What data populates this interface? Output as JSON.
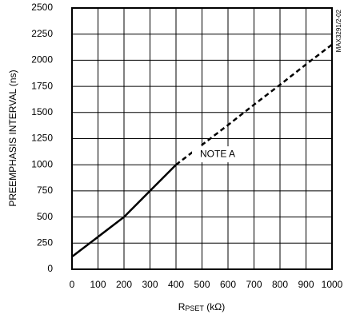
{
  "chart_data": {
    "type": "line",
    "ylabel": "PREEMPHASIS INTERVAL (ns)",
    "xlabel": {
      "main": "R",
      "sub": "PSET",
      "unit": " (kΩ)"
    },
    "side_note": "MAX3291/2-02",
    "annotation": {
      "text": "NOTE A",
      "x": 560,
      "y": 1100
    },
    "series": [
      {
        "x": [
          0,
          100,
          200,
          300,
          400
        ],
        "values": [
          120,
          310,
          500,
          750,
          1000
        ],
        "color": "#000000",
        "dashed": false
      },
      {
        "x": [
          400,
          500,
          600,
          700,
          800,
          900,
          1000
        ],
        "values": [
          1000,
          1190,
          1380,
          1575,
          1765,
          1960,
          2150
        ],
        "color": "#000000",
        "dashed": true
      }
    ],
    "xlim": [
      0,
      1000
    ],
    "xticks": [
      0,
      100,
      200,
      300,
      400,
      500,
      600,
      700,
      800,
      900,
      1000
    ],
    "ylim": [
      0,
      2500
    ],
    "yticks": [
      0,
      250,
      500,
      750,
      1000,
      1250,
      1500,
      1750,
      2000,
      2250,
      2500
    ],
    "grid": true
  }
}
